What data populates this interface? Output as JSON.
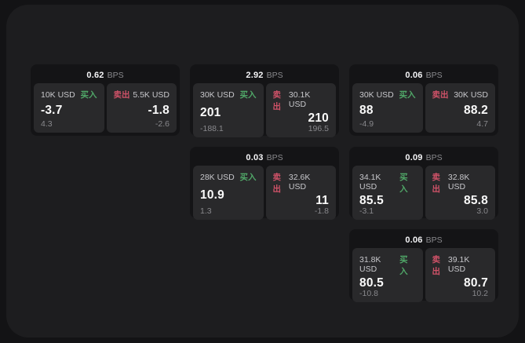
{
  "labels": {
    "bps_unit": "BPS",
    "buy": "买入",
    "sell": "卖出"
  },
  "colors": {
    "buy_green": "#50a768",
    "sell_red": "#cf5268",
    "panel_bg": "#1d1d1f",
    "card_bg": "#141416",
    "tile_bg": "#29292b"
  },
  "cards": [
    {
      "bps": "0.62",
      "buy": {
        "amount": "10K USD",
        "price": "-3.7",
        "change": "4.3"
      },
      "sell": {
        "amount": "5.5K USD",
        "price": "-1.8",
        "change": "-2.6"
      }
    },
    {
      "bps": "2.92",
      "buy": {
        "amount": "30K USD",
        "price": "201",
        "change": "-188.1"
      },
      "sell": {
        "amount": "30.1K USD",
        "price": "210",
        "change": "196.5"
      }
    },
    {
      "bps": "0.06",
      "buy": {
        "amount": "30K USD",
        "price": "88",
        "change": "-4.9"
      },
      "sell": {
        "amount": "30K USD",
        "price": "88.2",
        "change": "4.7"
      }
    },
    {
      "bps": "0.03",
      "buy": {
        "amount": "28K USD",
        "price": "10.9",
        "change": "1.3"
      },
      "sell": {
        "amount": "32.6K USD",
        "price": "11",
        "change": "-1.8"
      }
    },
    {
      "bps": "0.09",
      "buy": {
        "amount": "34.1K USD",
        "price": "85.5",
        "change": "-3.1"
      },
      "sell": {
        "amount": "32.8K USD",
        "price": "85.8",
        "change": "3.0"
      }
    },
    {
      "bps": "0.06",
      "buy": {
        "amount": "31.8K USD",
        "price": "80.5",
        "change": "-10.8"
      },
      "sell": {
        "amount": "39.1K USD",
        "price": "80.7",
        "change": "10.2"
      }
    }
  ]
}
